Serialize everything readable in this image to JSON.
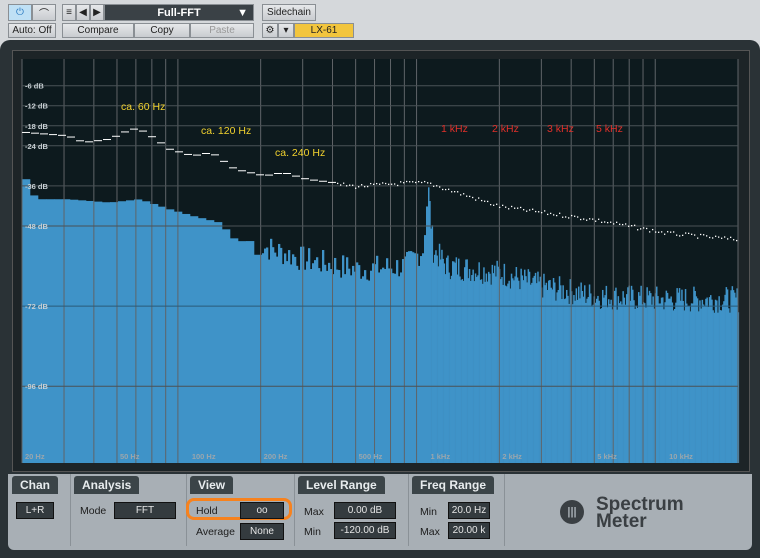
{
  "toolbar": {
    "power": "⏻",
    "preset": "Full-FFT",
    "sidechain": "Sidechain",
    "auto": "Auto: Off",
    "compare": "Compare",
    "copy": "Copy",
    "paste": "Paste",
    "device": "LX-61",
    "accent": "#f2c53d"
  },
  "chart_data": {
    "type": "area",
    "xscale": "log",
    "xlim": [
      20,
      20000
    ],
    "ylim": [
      -119,
      2
    ],
    "grid": true,
    "y_ticks": [
      -6,
      -12,
      -18,
      -24,
      -36,
      -48,
      -72,
      -96
    ],
    "y_tick_labels": [
      "-6 dB",
      "-12 dB",
      "-18 dB",
      "-24 dB",
      "-36 dB",
      "-48 dB",
      "-72 dB",
      "-96 dB"
    ],
    "x_ticks": [
      20,
      50,
      100,
      200,
      500,
      1000,
      2000,
      5000,
      10000
    ],
    "x_tick_labels": [
      "20 Hz",
      "50 Hz",
      "100 Hz",
      "200 Hz",
      "500 Hz",
      "1 kHz",
      "2 kHz",
      "5 kHz",
      "10 kHz"
    ],
    "series": [
      {
        "kind": "spectrum",
        "color": "#3f93c8",
        "x": [
          20,
          22,
          30,
          45,
          60,
          80,
          100,
          130,
          150,
          200,
          300,
          500,
          800,
          950,
          1000,
          1050,
          1200,
          2000,
          3000,
          5000,
          10000,
          20000
        ],
        "y": [
          -34,
          -40,
          -40,
          -41,
          -40,
          -43,
          -45,
          -47,
          -52,
          -54,
          -58,
          -61,
          -60,
          -55,
          -36,
          -55,
          -60,
          -62,
          -66,
          -69,
          -70,
          -70
        ]
      },
      {
        "kind": "peak-hold",
        "color": "#ffffff",
        "x": [
          20,
          30,
          35,
          45,
          55,
          60,
          70,
          80,
          100,
          120,
          150,
          200,
          240,
          300,
          500,
          800,
          1000,
          2000,
          5000,
          10000,
          20000
        ],
        "y": [
          -20,
          -21,
          -23,
          -22,
          -19,
          -19,
          -22,
          -25,
          -27,
          -26,
          -31,
          -33,
          -32,
          -34,
          -36,
          -35,
          -35,
          -42,
          -46,
          -50,
          -52
        ]
      }
    ],
    "annotations": [
      {
        "text": "ca. 60 Hz",
        "color": "#f2d22e"
      },
      {
        "text": "ca. 120 Hz",
        "color": "#f2d22e"
      },
      {
        "text": "ca. 240 Hz",
        "color": "#f2d22e"
      },
      {
        "text": "1 kHz",
        "color": "#e0302a"
      },
      {
        "text": "2 kHz",
        "color": "#e0302a"
      },
      {
        "text": "3 kHz",
        "color": "#e0302a"
      },
      {
        "text": "5 kHz",
        "color": "#e0302a"
      }
    ]
  },
  "panel": {
    "chan": {
      "title": "Chan",
      "value": "L+R"
    },
    "analysis": {
      "title": "Analysis",
      "mode_label": "Mode",
      "mode": "FFT"
    },
    "view": {
      "title": "View",
      "hold_label": "Hold",
      "hold": "oo",
      "average_label": "Average",
      "average": "None",
      "highlight": "#f7821e"
    },
    "level": {
      "title": "Level Range",
      "max_label": "Max",
      "max": "0.00 dB",
      "min_label": "Min",
      "min": "-120.00 dB"
    },
    "freq": {
      "title": "Freq Range",
      "min_label": "Min",
      "min": "20.0 Hz",
      "max_label": "Max",
      "max": "20.00 k"
    },
    "logo": {
      "line1": "Spectrum",
      "line2": "Meter"
    }
  }
}
